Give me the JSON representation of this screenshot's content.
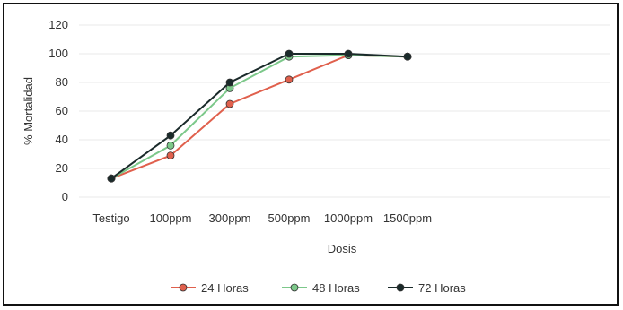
{
  "chart_data": {
    "type": "line",
    "categories": [
      "Testigo",
      "100ppm",
      "300ppm",
      "500ppm",
      "1000ppm",
      "1500ppm"
    ],
    "series": [
      {
        "name": "24 Horas",
        "color": "#e0604d",
        "values": [
          13,
          29,
          65,
          82,
          99,
          98
        ]
      },
      {
        "name": "48 Horas",
        "color": "#7cc88a",
        "values": [
          13,
          36,
          76,
          98,
          99,
          98
        ]
      },
      {
        "name": "72 Horas",
        "color": "#1a2a2a",
        "values": [
          13,
          43,
          80,
          100,
          100,
          98
        ]
      }
    ],
    "xlabel": "Dosis",
    "ylabel": "% Mortalidad",
    "ylim": [
      0,
      120
    ],
    "yticks": [
      0,
      20,
      40,
      60,
      80,
      100,
      120
    ],
    "grid": true,
    "legend_position": "bottom"
  }
}
